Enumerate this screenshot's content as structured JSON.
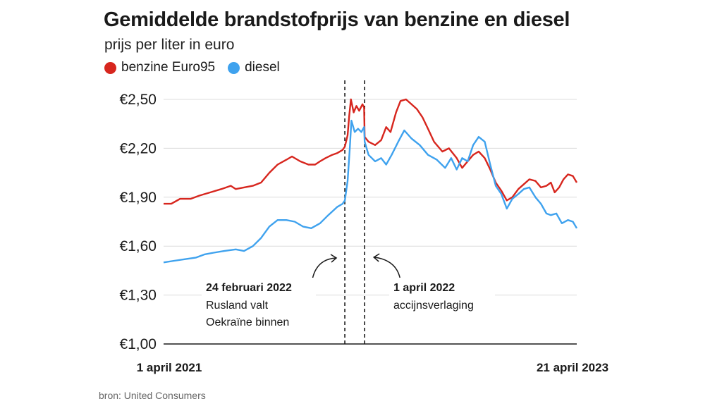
{
  "header": {
    "title": "Gemiddelde brandstofprijs van benzine en diesel",
    "subtitle": "prijs per liter in euro"
  },
  "legend": [
    {
      "label": "benzine Euro95",
      "color": "#d7261e"
    },
    {
      "label": "diesel",
      "color": "#3fa2ee"
    }
  ],
  "source": "bron: United Consumers",
  "chart_data": {
    "type": "line",
    "ylim": [
      1.0,
      2.5
    ],
    "yticks": [
      1.0,
      1.3,
      1.6,
      1.9,
      2.2,
      2.5
    ],
    "ytick_labels": [
      "€1,00",
      "€1,30",
      "€1,60",
      "€1,90",
      "€2,20",
      "€2,50"
    ],
    "grid": true,
    "x_start_label": "1 april 2021",
    "x_end_label": "21 april 2023",
    "x_range": [
      "2021-04-01",
      "2023-04-21"
    ],
    "series": [
      {
        "name": "benzine Euro95",
        "color": "#d7261e",
        "points": [
          [
            "2021-04-01",
            1.86
          ],
          [
            "2021-04-15",
            1.86
          ],
          [
            "2021-05-01",
            1.89
          ],
          [
            "2021-05-20",
            1.89
          ],
          [
            "2021-06-05",
            1.91
          ],
          [
            "2021-06-25",
            1.93
          ],
          [
            "2021-07-15",
            1.95
          ],
          [
            "2021-08-01",
            1.97
          ],
          [
            "2021-08-10",
            1.95
          ],
          [
            "2021-08-25",
            1.96
          ],
          [
            "2021-09-10",
            1.97
          ],
          [
            "2021-09-25",
            1.99
          ],
          [
            "2021-10-10",
            2.05
          ],
          [
            "2021-10-25",
            2.1
          ],
          [
            "2021-11-10",
            2.13
          ],
          [
            "2021-11-20",
            2.15
          ],
          [
            "2021-12-05",
            2.12
          ],
          [
            "2021-12-20",
            2.1
          ],
          [
            "2022-01-01",
            2.1
          ],
          [
            "2022-01-10",
            2.12
          ],
          [
            "2022-01-20",
            2.14
          ],
          [
            "2022-02-01",
            2.16
          ],
          [
            "2022-02-10",
            2.17
          ],
          [
            "2022-02-20",
            2.19
          ],
          [
            "2022-02-24",
            2.21
          ],
          [
            "2022-03-01",
            2.28
          ],
          [
            "2022-03-04",
            2.4
          ],
          [
            "2022-03-07",
            2.5
          ],
          [
            "2022-03-12",
            2.42
          ],
          [
            "2022-03-17",
            2.46
          ],
          [
            "2022-03-22",
            2.43
          ],
          [
            "2022-03-28",
            2.47
          ],
          [
            "2022-03-31",
            2.45
          ],
          [
            "2022-04-01",
            2.27
          ],
          [
            "2022-04-08",
            2.24
          ],
          [
            "2022-04-20",
            2.22
          ],
          [
            "2022-05-01",
            2.25
          ],
          [
            "2022-05-10",
            2.33
          ],
          [
            "2022-05-18",
            2.3
          ],
          [
            "2022-05-28",
            2.42
          ],
          [
            "2022-06-05",
            2.49
          ],
          [
            "2022-06-15",
            2.5
          ],
          [
            "2022-06-25",
            2.47
          ],
          [
            "2022-07-05",
            2.44
          ],
          [
            "2022-07-15",
            2.39
          ],
          [
            "2022-07-25",
            2.32
          ],
          [
            "2022-08-05",
            2.24
          ],
          [
            "2022-08-20",
            2.18
          ],
          [
            "2022-09-01",
            2.2
          ],
          [
            "2022-09-15",
            2.14
          ],
          [
            "2022-09-25",
            2.08
          ],
          [
            "2022-10-05",
            2.12
          ],
          [
            "2022-10-15",
            2.16
          ],
          [
            "2022-10-25",
            2.18
          ],
          [
            "2022-11-05",
            2.14
          ],
          [
            "2022-11-15",
            2.07
          ],
          [
            "2022-11-25",
            1.99
          ],
          [
            "2022-12-05",
            1.94
          ],
          [
            "2022-12-15",
            1.88
          ],
          [
            "2022-12-25",
            1.9
          ],
          [
            "2023-01-05",
            1.95
          ],
          [
            "2023-01-15",
            1.98
          ],
          [
            "2023-01-25",
            2.01
          ],
          [
            "2023-02-05",
            2.0
          ],
          [
            "2023-02-15",
            1.96
          ],
          [
            "2023-02-25",
            1.97
          ],
          [
            "2023-03-05",
            1.99
          ],
          [
            "2023-03-12",
            1.93
          ],
          [
            "2023-03-20",
            1.96
          ],
          [
            "2023-03-28",
            2.01
          ],
          [
            "2023-04-05",
            2.04
          ],
          [
            "2023-04-14",
            2.03
          ],
          [
            "2023-04-21",
            1.99
          ]
        ]
      },
      {
        "name": "diesel",
        "color": "#3fa2ee",
        "points": [
          [
            "2021-04-01",
            1.5
          ],
          [
            "2021-04-20",
            1.51
          ],
          [
            "2021-05-10",
            1.52
          ],
          [
            "2021-05-30",
            1.53
          ],
          [
            "2021-06-15",
            1.55
          ],
          [
            "2021-07-01",
            1.56
          ],
          [
            "2021-07-20",
            1.57
          ],
          [
            "2021-08-10",
            1.58
          ],
          [
            "2021-08-25",
            1.57
          ],
          [
            "2021-09-10",
            1.6
          ],
          [
            "2021-09-25",
            1.65
          ],
          [
            "2021-10-10",
            1.72
          ],
          [
            "2021-10-25",
            1.76
          ],
          [
            "2021-11-10",
            1.76
          ],
          [
            "2021-11-25",
            1.75
          ],
          [
            "2021-12-10",
            1.72
          ],
          [
            "2021-12-25",
            1.71
          ],
          [
            "2022-01-10",
            1.74
          ],
          [
            "2022-01-25",
            1.79
          ],
          [
            "2022-02-10",
            1.84
          ],
          [
            "2022-02-20",
            1.86
          ],
          [
            "2022-02-24",
            1.88
          ],
          [
            "2022-03-01",
            2.0
          ],
          [
            "2022-03-05",
            2.2
          ],
          [
            "2022-03-08",
            2.37
          ],
          [
            "2022-03-14",
            2.3
          ],
          [
            "2022-03-20",
            2.32
          ],
          [
            "2022-03-26",
            2.3
          ],
          [
            "2022-03-31",
            2.33
          ],
          [
            "2022-04-01",
            2.24
          ],
          [
            "2022-04-08",
            2.16
          ],
          [
            "2022-04-20",
            2.12
          ],
          [
            "2022-05-01",
            2.14
          ],
          [
            "2022-05-10",
            2.1
          ],
          [
            "2022-05-20",
            2.16
          ],
          [
            "2022-06-01",
            2.24
          ],
          [
            "2022-06-12",
            2.31
          ],
          [
            "2022-06-25",
            2.26
          ],
          [
            "2022-07-10",
            2.22
          ],
          [
            "2022-07-25",
            2.16
          ],
          [
            "2022-08-10",
            2.13
          ],
          [
            "2022-08-25",
            2.08
          ],
          [
            "2022-09-05",
            2.14
          ],
          [
            "2022-09-15",
            2.07
          ],
          [
            "2022-09-25",
            2.14
          ],
          [
            "2022-10-05",
            2.12
          ],
          [
            "2022-10-15",
            2.22
          ],
          [
            "2022-10-25",
            2.27
          ],
          [
            "2022-11-05",
            2.24
          ],
          [
            "2022-11-15",
            2.1
          ],
          [
            "2022-11-25",
            1.97
          ],
          [
            "2022-12-05",
            1.92
          ],
          [
            "2022-12-15",
            1.83
          ],
          [
            "2022-12-25",
            1.89
          ],
          [
            "2023-01-05",
            1.92
          ],
          [
            "2023-01-15",
            1.95
          ],
          [
            "2023-01-25",
            1.96
          ],
          [
            "2023-02-05",
            1.9
          ],
          [
            "2023-02-15",
            1.86
          ],
          [
            "2023-02-25",
            1.8
          ],
          [
            "2023-03-05",
            1.79
          ],
          [
            "2023-03-15",
            1.8
          ],
          [
            "2023-03-25",
            1.74
          ],
          [
            "2023-04-05",
            1.76
          ],
          [
            "2023-04-14",
            1.75
          ],
          [
            "2023-04-21",
            1.71
          ]
        ]
      }
    ],
    "annotations": [
      {
        "date": "2022-02-24",
        "title": "24 februari 2022",
        "lines": [
          "Rusland valt",
          "Oekraïne binnen"
        ]
      },
      {
        "date": "2022-04-01",
        "title": "1 april 2022",
        "lines": [
          "accijnsverlaging"
        ]
      }
    ]
  }
}
